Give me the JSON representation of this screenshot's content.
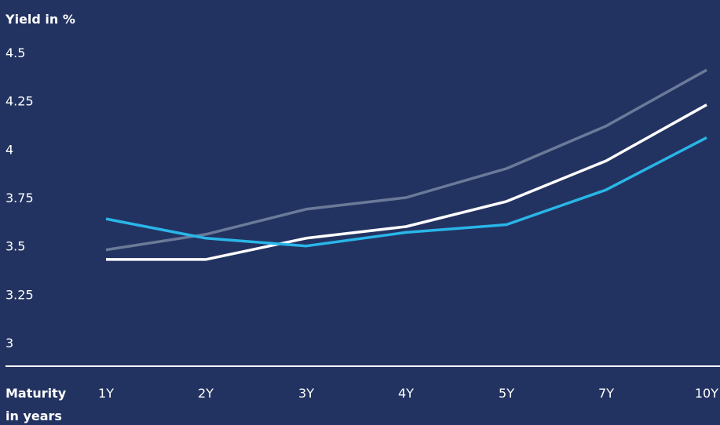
{
  "chart_data": {
    "type": "line",
    "ylabel": "Yield in %",
    "xlabel_line1": "Maturity",
    "xlabel_line2": "in years",
    "categories": [
      "1Y",
      "2Y",
      "3Y",
      "4Y",
      "5Y",
      "7Y",
      "10Y"
    ],
    "y_ticks": [
      "4.5",
      "4.25",
      "4",
      "3.75",
      "3.5",
      "3.25",
      "3"
    ],
    "ylim": [
      3,
      4.5
    ],
    "grid": false,
    "series": [
      {
        "color": "#6b7a99",
        "values": [
          3.48,
          3.56,
          3.69,
          3.75,
          3.9,
          4.12,
          4.41
        ]
      },
      {
        "color": "#ffffff",
        "values": [
          3.43,
          3.43,
          3.54,
          3.6,
          3.73,
          3.94,
          4.23
        ]
      },
      {
        "color": "#29b6e8",
        "values": [
          3.64,
          3.54,
          3.5,
          3.57,
          3.61,
          3.79,
          4.06
        ]
      }
    ]
  },
  "colors": {
    "background": "#233361",
    "axis": "#ffffff",
    "text": "#ffffff"
  }
}
